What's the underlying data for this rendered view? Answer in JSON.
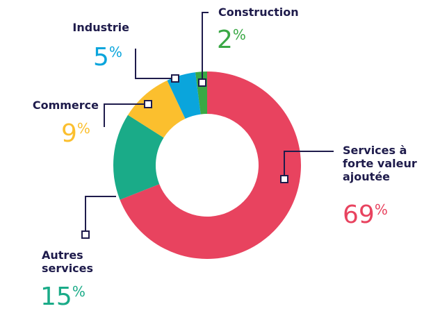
{
  "chart_data": {
    "type": "donut",
    "categories": [
      "Services à forte valeur ajoutée",
      "Autres services",
      "Commerce",
      "Industrie",
      "Construction"
    ],
    "values": [
      69,
      15,
      9,
      5,
      2
    ],
    "colors": [
      "#e8435f",
      "#1aab88",
      "#fbbf2e",
      "#0aa5dc",
      "#3aa845"
    ],
    "unit": "%"
  }
}
